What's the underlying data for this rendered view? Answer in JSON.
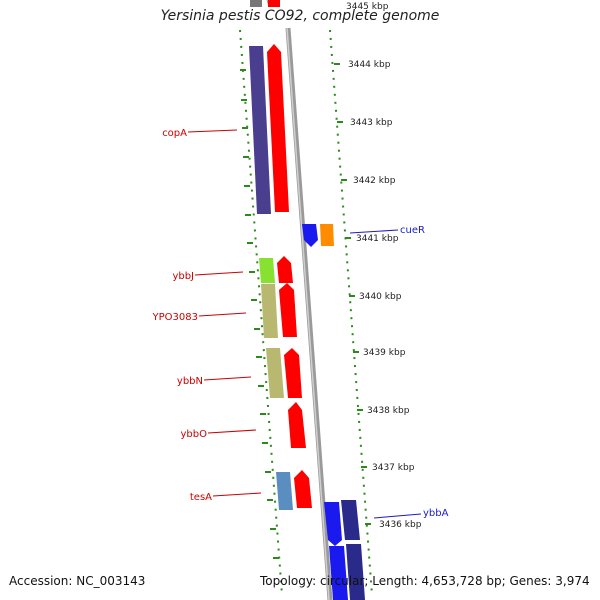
{
  "title": "Yersinia pestis CO92, complete genome",
  "footer": {
    "accession": "Accession: NC_003143",
    "summary": "Topology: circular; Length: 4,653,728 bp; Genes: 3,974"
  },
  "colors": {
    "forward_gene": "#ff0000",
    "reverse_gene": "#4a3f8f",
    "label_forward": "#cc0000",
    "label_reverse": "#1a1acc",
    "tick": "#2a8a1a",
    "backbone": "#999999"
  },
  "scale": {
    "unit": "kbp",
    "ticks": [
      {
        "label": "3445 kbp",
        "value": 3445
      },
      {
        "label": "3444 kbp",
        "value": 3444
      },
      {
        "label": "3443 kbp",
        "value": 3443
      },
      {
        "label": "3442 kbp",
        "value": 3442
      },
      {
        "label": "3441 kbp",
        "value": 3441
      },
      {
        "label": "3440 kbp",
        "value": 3440
      },
      {
        "label": "3439 kbp",
        "value": 3439
      },
      {
        "label": "3438 kbp",
        "value": 3438
      },
      {
        "label": "3437 kbp",
        "value": 3437
      },
      {
        "label": "3436 kbp",
        "value": 3436
      }
    ]
  },
  "genes": [
    {
      "name": "copA",
      "label": "copA",
      "side": "left",
      "color": "#4a3f8f",
      "strand": "reverse"
    },
    {
      "name": "copA-fwd",
      "label": "",
      "side": "left",
      "color": "#ff0000",
      "strand": "forward"
    },
    {
      "name": "cueR",
      "label": "cueR",
      "side": "right",
      "color": "#1a1aee",
      "strand": "reverse"
    },
    {
      "name": "cueR-orange",
      "label": "",
      "side": "right",
      "color": "#ff8c00",
      "strand": "forward"
    },
    {
      "name": "ybbJ",
      "label": "ybbJ",
      "side": "left",
      "color": "#88e030",
      "strand": "reverse"
    },
    {
      "name": "YPO3083",
      "label": "YPO3083",
      "side": "left",
      "color": "#b8b870",
      "strand": "reverse"
    },
    {
      "name": "ybbN",
      "label": "ybbN",
      "side": "left",
      "color": "#b8b870",
      "strand": "reverse"
    },
    {
      "name": "ybbO",
      "label": "ybbO",
      "side": "left",
      "color": "#ff0000",
      "strand": "forward"
    },
    {
      "name": "tesA",
      "label": "tesA",
      "side": "left",
      "color": "#5a8ec0",
      "strand": "reverse"
    },
    {
      "name": "ybbA",
      "label": "ybbA",
      "side": "right",
      "color": "#1a1aee",
      "strand": "reverse"
    }
  ]
}
